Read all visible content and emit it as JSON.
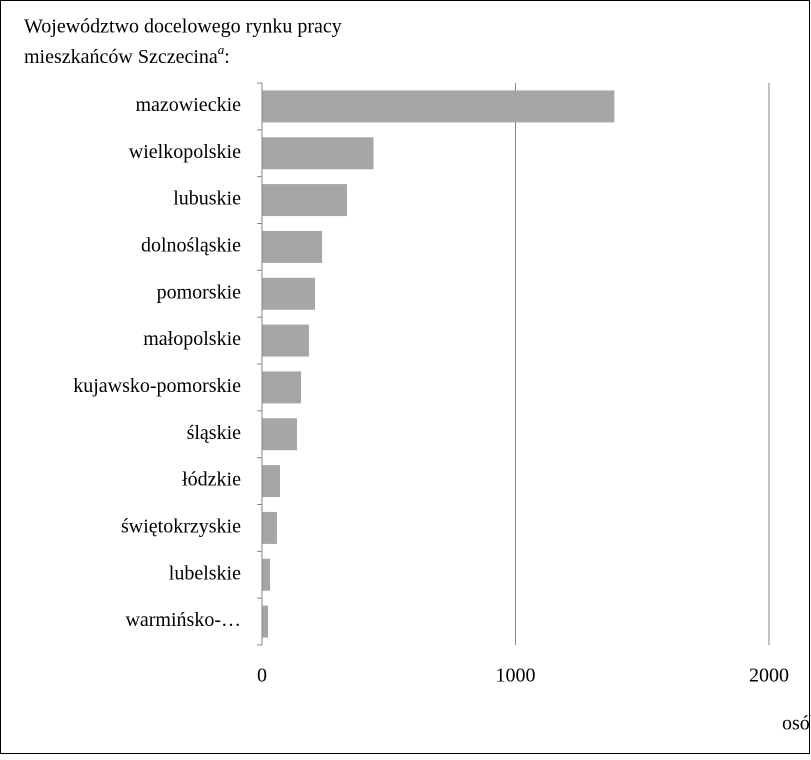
{
  "chart_data": {
    "type": "barh",
    "title": [
      "Województwo docelowego rynku pracy",
      "mieszkańców Szczecina"
    ],
    "title_superscript": "a",
    "title_suffix": ":",
    "x_label": "osób",
    "categories": [
      "mazowieckie",
      "wielkopolskie",
      "lubuskie",
      "dolnośląskie",
      "pomorskie",
      "małopolskie",
      "kujawsko-pomorskie",
      "śląskie",
      "łódzkie",
      "świętokrzyskie",
      "lubelskie",
      "warmińsko-…"
    ],
    "values": [
      1390,
      440,
      335,
      237,
      209,
      185,
      154,
      138,
      71,
      59,
      32,
      24
    ],
    "color": "#a6a6a6",
    "xlim": [
      0,
      2000
    ],
    "xticks": [
      0,
      1000,
      2000
    ],
    "grid": true
  }
}
